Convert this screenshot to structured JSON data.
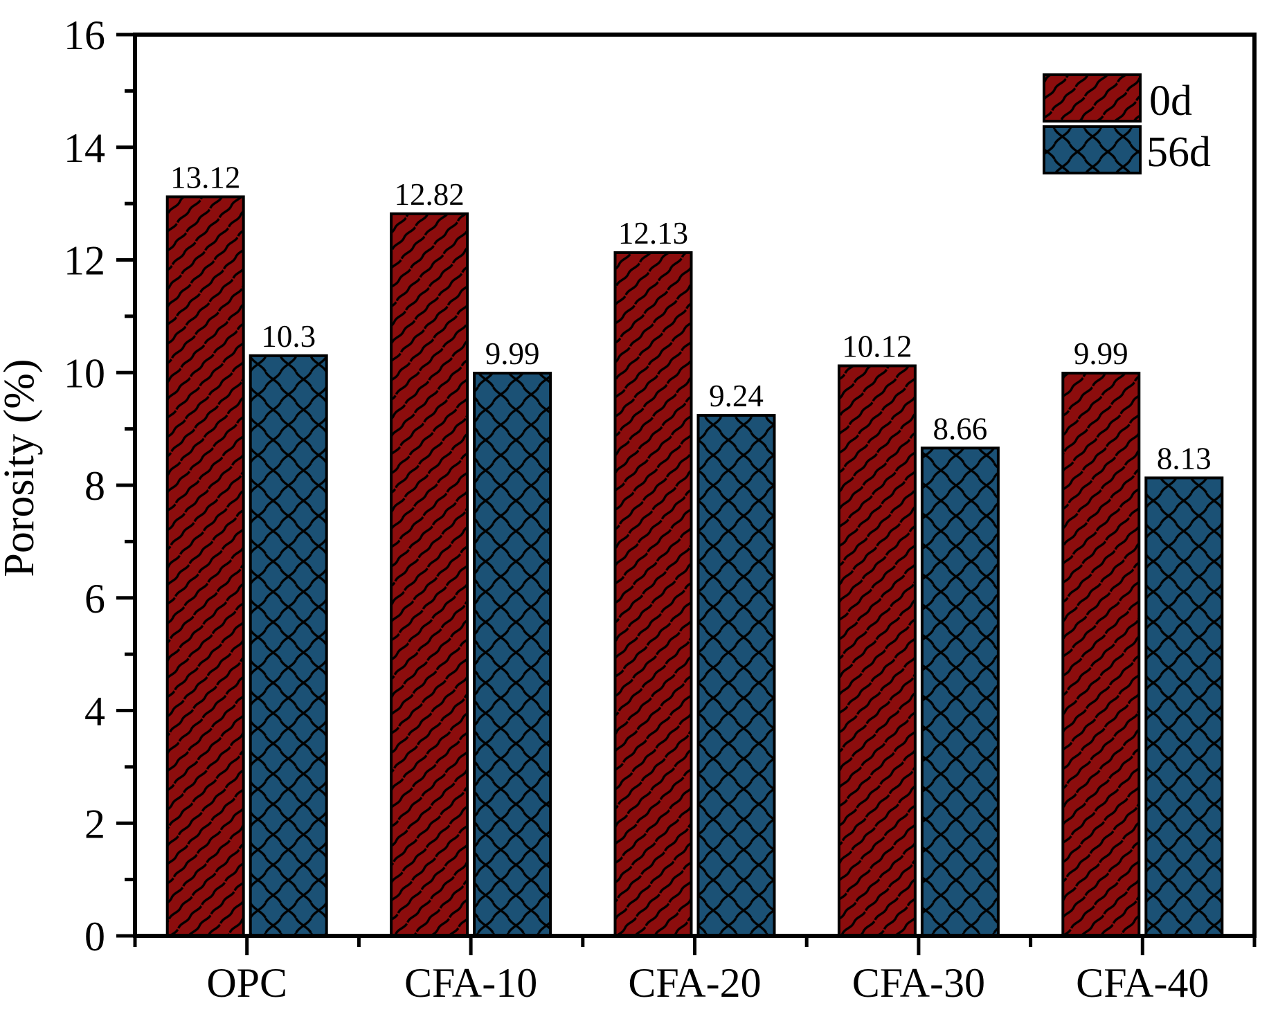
{
  "chart_data": {
    "type": "bar",
    "title": "",
    "categories": [
      "OPC",
      "CFA-10",
      "CFA-20",
      "CFA-30",
      "CFA-40"
    ],
    "series": [
      {
        "name": "0d",
        "values": [
          13.12,
          12.82,
          12.13,
          10.12,
          9.99
        ],
        "labels": [
          "13.12",
          "12.82",
          "12.13",
          "10.12",
          "9.99"
        ],
        "color": "#8C0D0D",
        "hatch": "diagonal"
      },
      {
        "name": "56d",
        "values": [
          10.3,
          9.99,
          9.24,
          8.66,
          8.13
        ],
        "labels": [
          "10.3",
          "9.99",
          "9.24",
          "8.66",
          "8.13"
        ],
        "color": "#1B5175",
        "hatch": "cross"
      }
    ],
    "xlabel": "",
    "ylabel": "Porosity (%)",
    "ylim": [
      0,
      16
    ],
    "yticks": [
      0,
      2,
      4,
      6,
      8,
      10,
      12,
      14,
      16
    ],
    "ytick_minor_step": 1,
    "bar_value_labels": true,
    "grid": false,
    "legend": {
      "position": "top-right",
      "entries": [
        "0d",
        "56d"
      ]
    },
    "axis_color": "#000000",
    "hatch_color": "#000000",
    "text_color": "#000000"
  }
}
